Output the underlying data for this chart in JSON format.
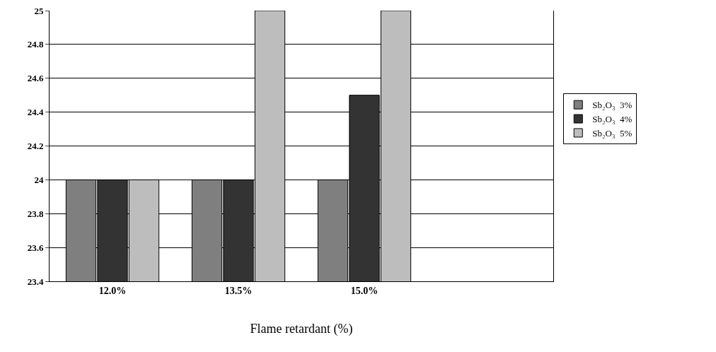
{
  "chart_data": {
    "type": "bar",
    "xlabel": "Flame retardant (%)",
    "categories": [
      "12.0%",
      "13.5%",
      "15.0%",
      null
    ],
    "series": [
      {
        "name": "Sb₂O₃  3%",
        "color": "#7f7f7f",
        "values": [
          24,
          24,
          24,
          null
        ]
      },
      {
        "name": "Sb₂O₃  4%",
        "color": "#333333",
        "values": [
          24,
          24,
          24.5,
          null
        ]
      },
      {
        "name": "Sb₂O₃  5%",
        "color": "#bdbdbd",
        "values": [
          24,
          25,
          25,
          null
        ]
      }
    ],
    "ylim": [
      23.4,
      25
    ],
    "yticks": [
      23.4,
      23.6,
      23.8,
      24,
      24.2,
      24.4,
      24.6,
      24.8,
      25
    ],
    "grid": "y",
    "legend": "right"
  }
}
